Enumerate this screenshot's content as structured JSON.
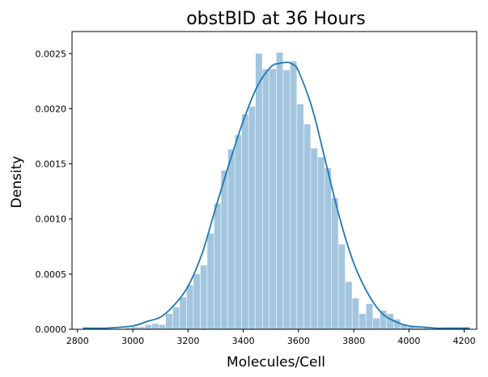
{
  "chart_data": {
    "type": "histogram",
    "title": "obstBID at 36 Hours",
    "xlabel": "Molecules/Cell",
    "ylabel": "Density",
    "xlim": [
      2780,
      4245
    ],
    "ylim": [
      0,
      0.0027
    ],
    "xticks": [
      2800,
      3000,
      3200,
      3400,
      3600,
      3800,
      4000,
      4200
    ],
    "xtick_labels": [
      "2800",
      "3000",
      "3200",
      "3400",
      "3600",
      "3800",
      "4000",
      "4200"
    ],
    "yticks": [
      0,
      0.0005,
      0.001,
      0.0015,
      0.002,
      0.0025
    ],
    "ytick_labels": [
      "0.0000",
      "0.0005",
      "0.0010",
      "0.0015",
      "0.0020",
      "0.0025"
    ],
    "grid": false,
    "colors": {
      "bars": "#a3c6df",
      "kde": "#1f77b4"
    },
    "bins": {
      "edges": [
        2820,
        2845,
        2870,
        2895,
        2920,
        2945,
        2970,
        2995,
        3020,
        3045,
        3070,
        3095,
        3120,
        3145,
        3170,
        3195,
        3220,
        3245,
        3270,
        3295,
        3320,
        3345,
        3370,
        3395,
        3420,
        3445,
        3470,
        3495,
        3520,
        3545,
        3570,
        3595,
        3620,
        3645,
        3670,
        3695,
        3720,
        3745,
        3770,
        3795,
        3820,
        3845,
        3870,
        3895,
        3920,
        3945,
        3970,
        3995,
        4020,
        4045,
        4070,
        4095,
        4120,
        4145,
        4170,
        4195,
        4220
      ],
      "density": [
        1e-05,
        0.0,
        0.0,
        0.0,
        0.0,
        0.0,
        1e-05,
        2e-05,
        2e-05,
        4e-05,
        5e-05,
        4e-05,
        0.00014,
        0.0002,
        0.00029,
        0.0004,
        0.0005,
        0.00058,
        0.00087,
        0.00114,
        0.00144,
        0.00163,
        0.00176,
        0.00195,
        0.00202,
        0.0025,
        0.00236,
        0.00236,
        0.00251,
        0.00235,
        0.00243,
        0.00204,
        0.00186,
        0.00164,
        0.00156,
        0.00146,
        0.00119,
        0.00077,
        0.00043,
        0.00028,
        0.00014,
        0.00023,
        0.0001,
        0.00017,
        0.00014,
        9e-05,
        4e-05,
        2e-05,
        1e-05,
        1e-05,
        0.0,
        0.0,
        0.0,
        0.0,
        0.0,
        1e-05
      ]
    },
    "kde": {
      "x": [
        2820,
        2900,
        3000,
        3050,
        3100,
        3150,
        3200,
        3250,
        3300,
        3350,
        3400,
        3450,
        3500,
        3530,
        3560,
        3580,
        3600,
        3650,
        3700,
        3750,
        3800,
        3850,
        3900,
        3950,
        4000,
        4050,
        4100,
        4150,
        4220
      ],
      "y": [
        1e-05,
        1e-05,
        3e-05,
        7e-05,
        0.00011,
        0.00022,
        0.00039,
        0.00068,
        0.0011,
        0.00151,
        0.00189,
        0.0022,
        0.00238,
        0.00241,
        0.00242,
        0.0024,
        0.00234,
        0.002,
        0.0015,
        0.001,
        0.0006,
        0.00033,
        0.00015,
        7e-05,
        3e-05,
        2e-05,
        1e-05,
        1e-05,
        1e-05
      ]
    }
  }
}
